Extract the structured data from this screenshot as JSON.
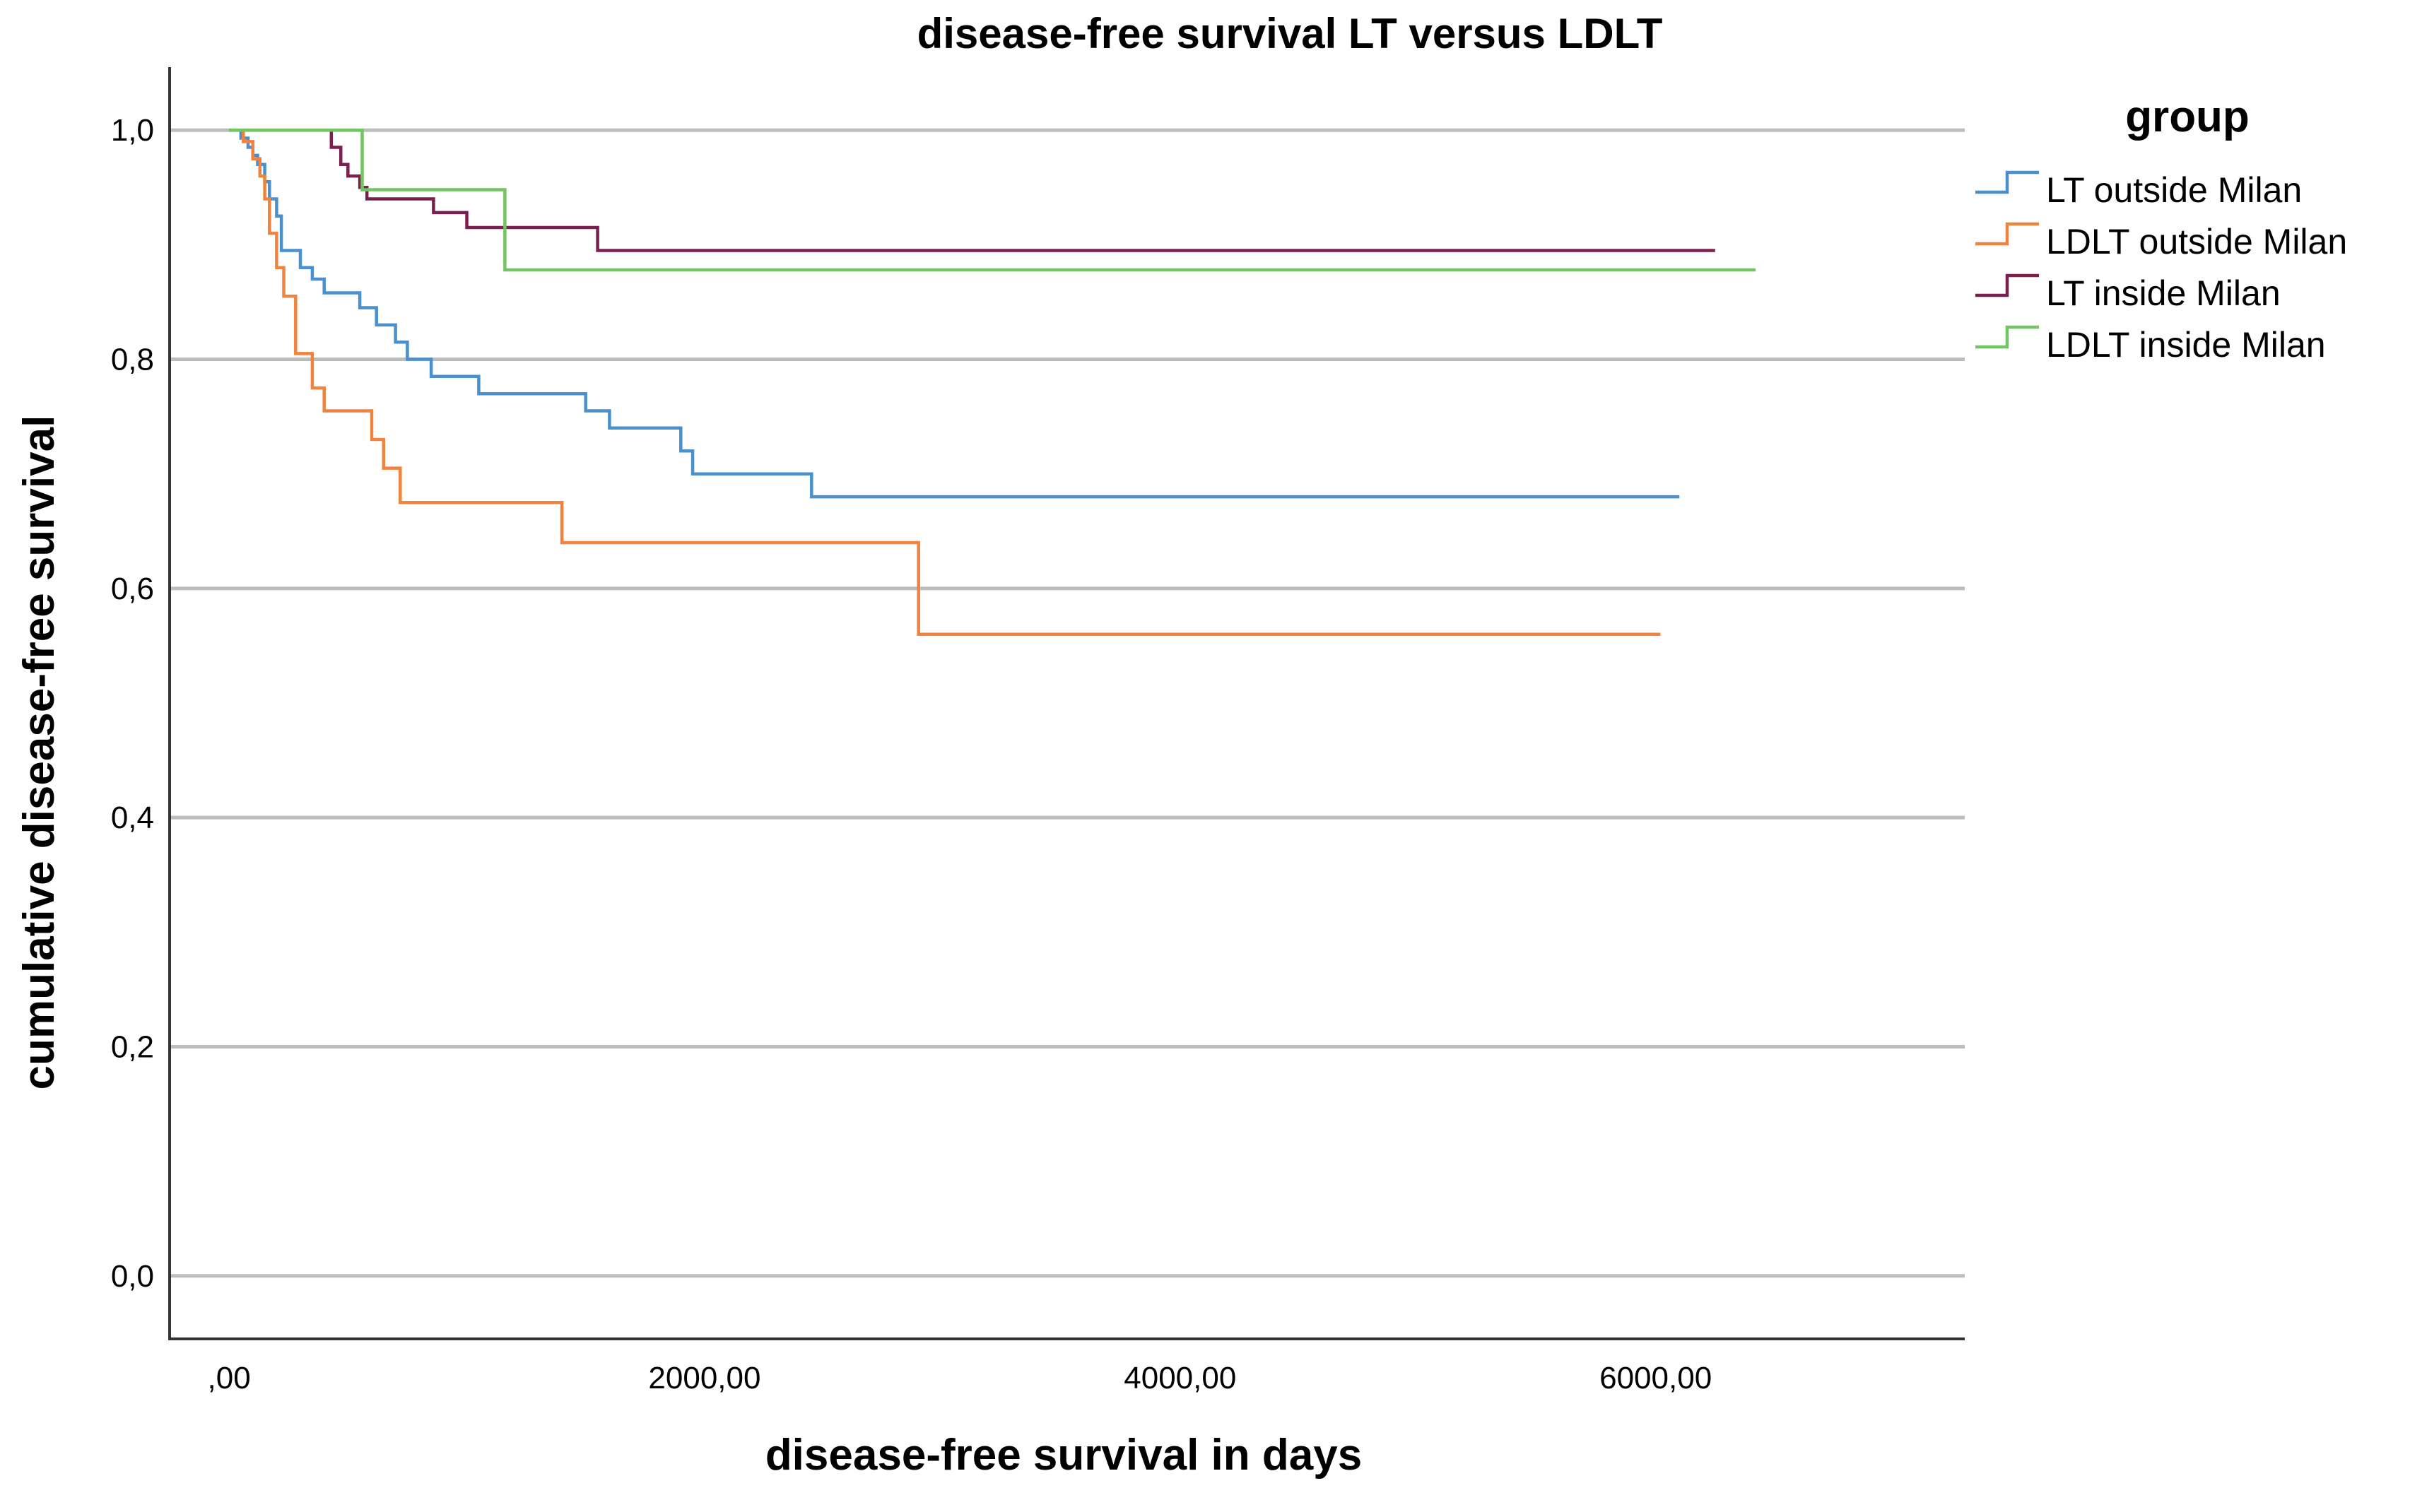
{
  "chart_data": {
    "type": "line",
    "subtype": "kaplan-meier step",
    "title": "disease-free survival LT versus LDLT",
    "xlabel": "disease-free survival in days",
    "ylabel": "cumulative disease-free survival",
    "xlim": [
      -250,
      7300
    ],
    "ylim": [
      -0.055,
      1.055
    ],
    "x_ticks": [
      0,
      2000,
      4000,
      6000
    ],
    "x_tick_labels": [
      ",00",
      "2000,00",
      "4000,00",
      "6000,00"
    ],
    "y_ticks": [
      0,
      0.2,
      0.4,
      0.6,
      0.8,
      1.0
    ],
    "y_tick_labels": [
      "0,0",
      "0,2",
      "0,4",
      "0,6",
      "0,8",
      "1,0"
    ],
    "grid": "horizontal",
    "legend": {
      "title": "group",
      "position": "right"
    },
    "series": [
      {
        "name": "LT outside Milan",
        "color": "#4a90cd",
        "x": [
          0,
          50,
          80,
          100,
          120,
          150,
          170,
          200,
          220,
          250,
          300,
          350,
          400,
          480,
          550,
          620,
          700,
          750,
          850,
          1050,
          1250,
          1500,
          1600,
          1900,
          1950,
          2050,
          2450,
          6100
        ],
        "y": [
          1.0,
          0.993,
          0.985,
          0.978,
          0.97,
          0.955,
          0.94,
          0.925,
          0.895,
          0.895,
          0.88,
          0.87,
          0.858,
          0.858,
          0.845,
          0.83,
          0.815,
          0.8,
          0.785,
          0.77,
          0.77,
          0.755,
          0.74,
          0.72,
          0.7,
          0.7,
          0.68,
          0.68
        ]
      },
      {
        "name": "LDLT outside Milan",
        "color": "#f0833d",
        "x": [
          0,
          60,
          100,
          130,
          150,
          170,
          200,
          230,
          280,
          350,
          400,
          600,
          650,
          720,
          1400,
          2900,
          6020
        ],
        "y": [
          1.0,
          0.99,
          0.975,
          0.96,
          0.94,
          0.91,
          0.88,
          0.855,
          0.805,
          0.775,
          0.755,
          0.73,
          0.705,
          0.675,
          0.64,
          0.56,
          0.56
        ]
      },
      {
        "name": "LT inside Milan",
        "color": "#7a1f4e",
        "x": [
          0,
          400,
          430,
          470,
          500,
          550,
          580,
          700,
          860,
          1000,
          1550,
          6250
        ],
        "y": [
          1.0,
          1.0,
          0.985,
          0.97,
          0.96,
          0.95,
          0.94,
          0.94,
          0.928,
          0.915,
          0.895,
          0.895
        ]
      },
      {
        "name": "LDLT inside Milan",
        "color": "#73c464",
        "x": [
          0,
          560,
          1160,
          6420
        ],
        "y": [
          1.0,
          0.948,
          0.878,
          0.878
        ]
      }
    ]
  }
}
